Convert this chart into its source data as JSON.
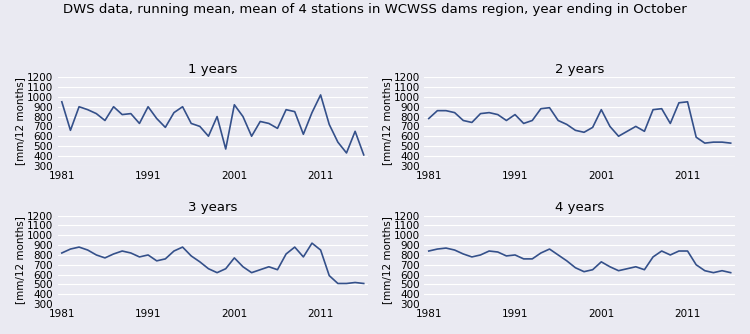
{
  "title": "DWS data, running mean, mean of 4 stations in WCWSS dams region, year ending in October",
  "subplots": [
    {
      "label": "1 years",
      "years": [
        1981,
        1982,
        1983,
        1984,
        1985,
        1986,
        1987,
        1988,
        1989,
        1990,
        1991,
        1992,
        1993,
        1994,
        1995,
        1996,
        1997,
        1998,
        1999,
        2000,
        2001,
        2002,
        2003,
        2004,
        2005,
        2006,
        2007,
        2008,
        2009,
        2010,
        2011,
        2012,
        2013,
        2014,
        2015,
        2016
      ],
      "values": [
        950,
        660,
        900,
        870,
        830,
        760,
        900,
        820,
        830,
        730,
        900,
        780,
        690,
        840,
        900,
        730,
        700,
        600,
        800,
        470,
        920,
        800,
        600,
        750,
        730,
        680,
        870,
        850,
        620,
        840,
        1020,
        720,
        540,
        430,
        650,
        410
      ]
    },
    {
      "label": "2 years",
      "years": [
        1981,
        1982,
        1983,
        1984,
        1985,
        1986,
        1987,
        1988,
        1989,
        1990,
        1991,
        1992,
        1993,
        1994,
        1995,
        1996,
        1997,
        1998,
        1999,
        2000,
        2001,
        2002,
        2003,
        2004,
        2005,
        2006,
        2007,
        2008,
        2009,
        2010,
        2011,
        2012,
        2013,
        2014,
        2015,
        2016
      ],
      "values": [
        780,
        860,
        860,
        840,
        760,
        740,
        830,
        840,
        820,
        760,
        820,
        730,
        760,
        880,
        890,
        760,
        720,
        660,
        640,
        690,
        870,
        700,
        600,
        650,
        700,
        650,
        870,
        880,
        730,
        940,
        950,
        590,
        530,
        540,
        540,
        530
      ]
    },
    {
      "label": "3 years",
      "years": [
        1981,
        1982,
        1983,
        1984,
        1985,
        1986,
        1987,
        1988,
        1989,
        1990,
        1991,
        1992,
        1993,
        1994,
        1995,
        1996,
        1997,
        1998,
        1999,
        2000,
        2001,
        2002,
        2003,
        2004,
        2005,
        2006,
        2007,
        2008,
        2009,
        2010,
        2011,
        2012,
        2013,
        2014,
        2015,
        2016
      ],
      "values": [
        820,
        860,
        880,
        850,
        800,
        770,
        810,
        840,
        820,
        780,
        800,
        740,
        760,
        840,
        880,
        790,
        730,
        660,
        620,
        660,
        770,
        680,
        620,
        650,
        680,
        650,
        810,
        880,
        780,
        920,
        850,
        590,
        510,
        510,
        520,
        510
      ]
    },
    {
      "label": "4 years",
      "years": [
        1981,
        1982,
        1983,
        1984,
        1985,
        1986,
        1987,
        1988,
        1989,
        1990,
        1991,
        1992,
        1993,
        1994,
        1995,
        1996,
        1997,
        1998,
        1999,
        2000,
        2001,
        2002,
        2003,
        2004,
        2005,
        2006,
        2007,
        2008,
        2009,
        2010,
        2011,
        2012,
        2013,
        2014,
        2015,
        2016
      ],
      "values": [
        840,
        860,
        870,
        850,
        810,
        780,
        800,
        840,
        830,
        790,
        800,
        760,
        760,
        820,
        860,
        800,
        740,
        670,
        630,
        650,
        730,
        680,
        640,
        660,
        680,
        650,
        780,
        840,
        800,
        840,
        840,
        700,
        640,
        620,
        640,
        620
      ]
    }
  ],
  "ylabel": "[mm/12 months]",
  "ylim": [
    300,
    1200
  ],
  "yticks": [
    300,
    400,
    500,
    600,
    700,
    800,
    900,
    1000,
    1100,
    1200
  ],
  "xticks": [
    1981,
    1991,
    2001,
    2011
  ],
  "line_color": "#34508a",
  "line_width": 1.2,
  "bg_color": "#eaeaf2",
  "fig_color": "#eaeaf2",
  "title_fontsize": 9.5,
  "subplot_title_fontsize": 9.5,
  "tick_fontsize": 7.5,
  "ylabel_fontsize": 7.5
}
